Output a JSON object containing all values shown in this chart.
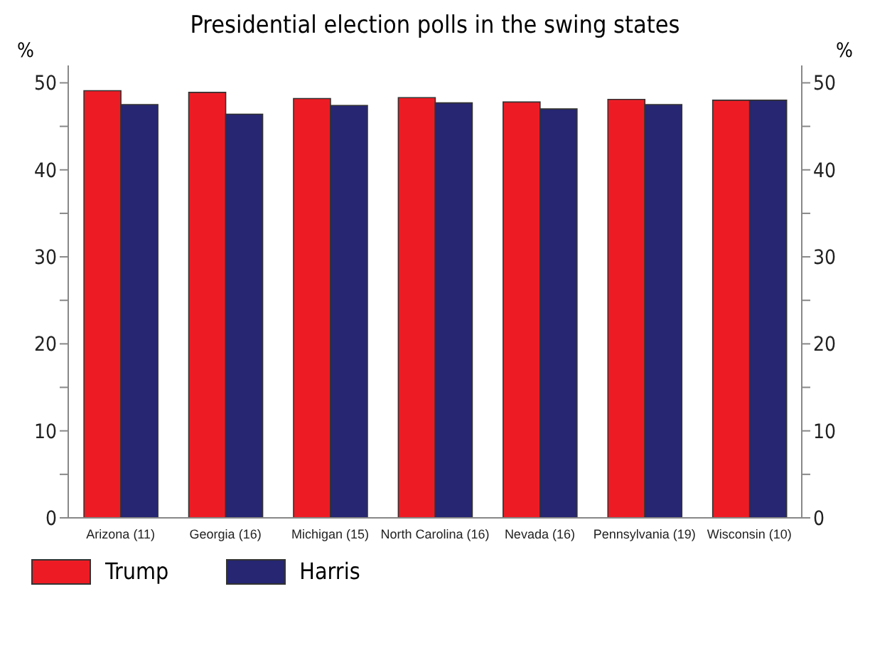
{
  "chart_data": {
    "type": "bar",
    "title": "Presidential election polls in the swing states",
    "ylabel": "%",
    "y2label": "%",
    "categories": [
      "Arizona (11)",
      "Georgia (16)",
      "Michigan (15)",
      "North Carolina (16)",
      "Nevada (16)",
      "Pennsylvania (19)",
      "Wisconsin (10)"
    ],
    "series": [
      {
        "name": "Trump",
        "color": "#ed1c24",
        "values": [
          49.1,
          48.9,
          48.2,
          48.3,
          47.8,
          48.1,
          48.0
        ]
      },
      {
        "name": "Harris",
        "color": "#262673",
        "values": [
          47.5,
          46.4,
          47.4,
          47.7,
          47.0,
          47.5,
          48.0
        ]
      }
    ],
    "ylim": [
      0,
      52
    ],
    "yticks": [
      0,
      {
        "value": 5,
        "label": null
      },
      10,
      {
        "value": 15,
        "label": null
      },
      20,
      {
        "value": 25,
        "label": null
      },
      30,
      {
        "value": 35,
        "label": null
      },
      40,
      {
        "value": 45,
        "label": null
      },
      50
    ],
    "y2lim": [
      0,
      52
    ],
    "y2ticks": [
      0,
      {
        "value": 5,
        "label": null
      },
      10,
      {
        "value": 15,
        "label": null
      },
      20,
      {
        "value": 25,
        "label": null
      },
      30,
      {
        "value": 35,
        "label": null
      },
      40,
      {
        "value": 45,
        "label": null
      },
      50
    ],
    "grid": false,
    "legend": "bottom left"
  }
}
